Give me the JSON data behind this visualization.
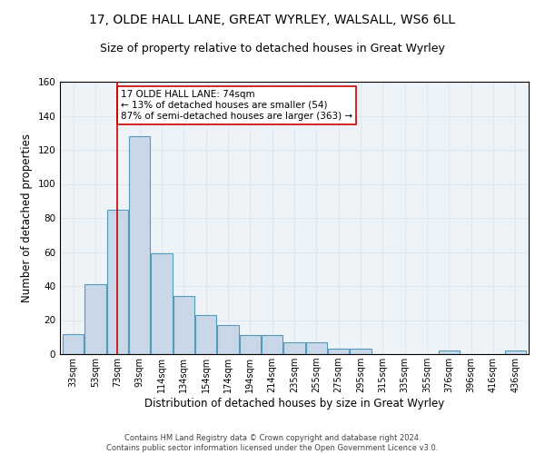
{
  "title1": "17, OLDE HALL LANE, GREAT WYRLEY, WALSALL, WS6 6LL",
  "title2": "Size of property relative to detached houses in Great Wyrley",
  "xlabel": "Distribution of detached houses by size in Great Wyrley",
  "ylabel": "Number of detached properties",
  "categories": [
    "33sqm",
    "53sqm",
    "73sqm",
    "93sqm",
    "114sqm",
    "134sqm",
    "154sqm",
    "174sqm",
    "194sqm",
    "214sqm",
    "235sqm",
    "255sqm",
    "275sqm",
    "295sqm",
    "315sqm",
    "335sqm",
    "355sqm",
    "376sqm",
    "396sqm",
    "416sqm",
    "436sqm"
  ],
  "values": [
    12,
    41,
    85,
    128,
    59,
    34,
    23,
    17,
    11,
    11,
    7,
    7,
    3,
    3,
    0,
    0,
    0,
    2,
    0,
    0,
    2
  ],
  "bar_color": "#c8d8e8",
  "bar_edge_color": "#5599bb",
  "vline_x": 2,
  "vline_color": "#cc0000",
  "annotation_text": "17 OLDE HALL LANE: 74sqm\n← 13% of detached houses are smaller (54)\n87% of semi-detached houses are larger (363) →",
  "annotation_box_color": "white",
  "annotation_box_edge_color": "#cc0000",
  "ylim": [
    0,
    160
  ],
  "yticks": [
    0,
    20,
    40,
    60,
    80,
    100,
    120,
    140,
    160
  ],
  "grid_color": "#dde8f0",
  "background_color": "#eef3f8",
  "footer": "Contains HM Land Registry data © Crown copyright and database right 2024.\nContains public sector information licensed under the Open Government Licence v3.0.",
  "title1_fontsize": 10,
  "title2_fontsize": 9,
  "xlabel_fontsize": 8.5,
  "ylabel_fontsize": 8.5,
  "annotation_fontsize": 7.5,
  "footer_fontsize": 6
}
